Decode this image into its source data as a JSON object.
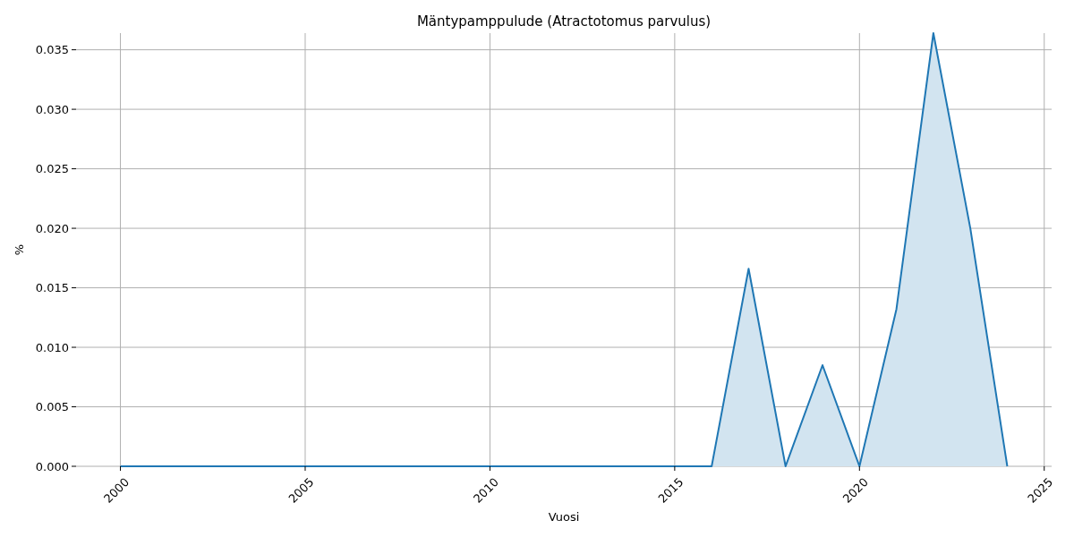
{
  "chart_data": {
    "type": "area",
    "title": "Mäntypamppulude (Atractotomus parvulus)",
    "xlabel": "Vuosi",
    "ylabel": "%",
    "x": [
      2000,
      2001,
      2002,
      2003,
      2004,
      2005,
      2006,
      2007,
      2008,
      2009,
      2010,
      2011,
      2012,
      2013,
      2014,
      2015,
      2016,
      2017,
      2018,
      2019,
      2020,
      2021,
      2022,
      2023,
      2024
    ],
    "series": [
      {
        "color": "#1f77b4",
        "values": [
          0,
          0,
          0,
          0,
          0,
          0,
          0,
          0,
          0,
          0,
          0,
          0,
          0,
          0,
          0,
          0,
          0,
          0.0166,
          0,
          0.0085,
          0,
          0.0132,
          0.0364,
          0.02,
          0
        ]
      }
    ],
    "xlim": [
      1998.8,
      2025.2
    ],
    "xticks": [
      2000,
      2005,
      2010,
      2015,
      2020,
      2025
    ],
    "ylim": [
      0,
      0.0364
    ],
    "yticks": [
      {
        "value": 0,
        "label": "0.000"
      },
      0.005,
      {
        "value": 0.01,
        "label": "0.010"
      },
      0.015,
      {
        "value": 0.02,
        "label": "0.020"
      },
      0.025,
      {
        "value": 0.03,
        "label": "0.030"
      },
      0.035
    ],
    "grid": true
  }
}
